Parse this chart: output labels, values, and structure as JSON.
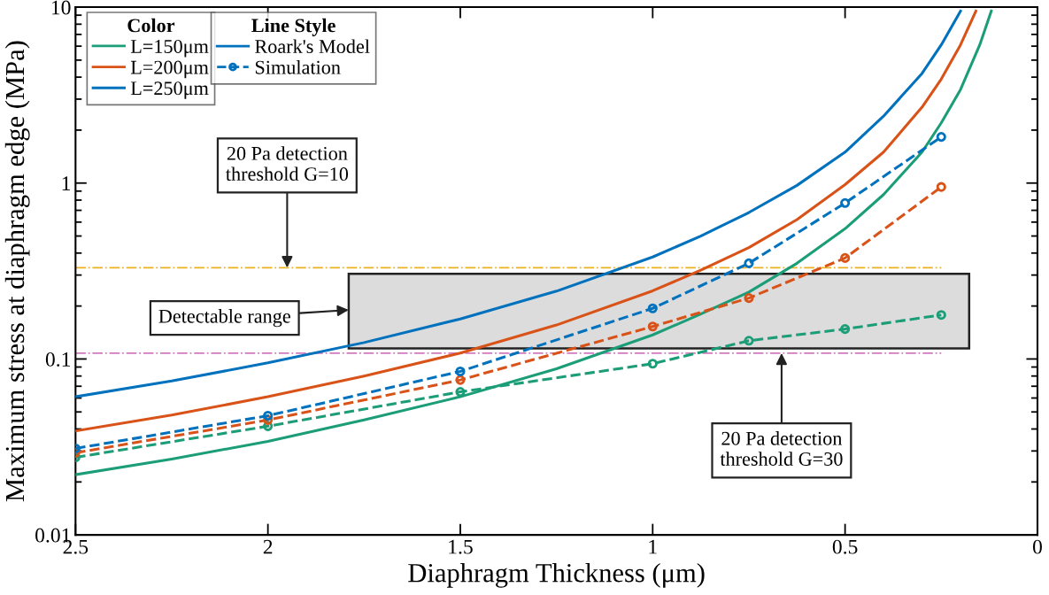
{
  "chart_data": {
    "type": "line",
    "xlabel": "Diaphragm Thickness (μm)",
    "ylabel": "Maximum stress at diaphragm edge (MPa)",
    "legend_title": "Color",
    "xlim": [
      2.5,
      0
    ],
    "xticks": [
      2.5,
      2,
      1.5,
      1,
      0.5,
      0
    ],
    "ylim": [
      0.01,
      10
    ],
    "yticks": [
      0.01,
      0.1,
      1,
      10
    ],
    "log": "y",
    "grid": false,
    "legend": "top left",
    "series": [
      {
        "name": "L=150μm",
        "color": "#1b9e77",
        "line_style": "solid",
        "marker": "none",
        "x": [
          2.5,
          2.25,
          2,
          1.75,
          1.5,
          1.25,
          1,
          0.875,
          0.75,
          0.625,
          0.5,
          0.4,
          0.3,
          0.25,
          0.2,
          0.15,
          0.12
        ],
        "values": [
          0.022,
          0.027,
          0.034,
          0.045,
          0.061,
          0.088,
          0.137,
          0.18,
          0.24,
          0.35,
          0.55,
          0.86,
          1.5,
          2.2,
          3.4,
          6.1,
          9.5
        ]
      },
      {
        "name": "L=200μm",
        "color": "#d95319",
        "line_style": "solid",
        "marker": "none",
        "x": [
          2.5,
          2.25,
          2,
          1.75,
          1.5,
          1.25,
          1,
          0.875,
          0.75,
          0.625,
          0.5,
          0.4,
          0.3,
          0.25,
          0.2,
          0.16
        ],
        "values": [
          0.039,
          0.048,
          0.061,
          0.08,
          0.108,
          0.156,
          0.244,
          0.32,
          0.43,
          0.62,
          0.98,
          1.5,
          2.7,
          3.9,
          6.1,
          9.5
        ]
      },
      {
        "name": "L=250μm",
        "color": "#0072bd",
        "line_style": "solid",
        "marker": "none",
        "x": [
          2.5,
          2.25,
          2,
          1.75,
          1.5,
          1.25,
          1,
          0.875,
          0.75,
          0.625,
          0.5,
          0.4,
          0.3,
          0.25,
          0.2
        ],
        "values": [
          0.061,
          0.075,
          0.095,
          0.124,
          0.169,
          0.243,
          0.38,
          0.5,
          0.68,
          0.97,
          1.5,
          2.4,
          4.2,
          6.1,
          9.5
        ]
      },
      {
        "color": "#1b9e77",
        "line_style": "dashed",
        "marker": "circle",
        "x": [
          2.5,
          2,
          1.5,
          1,
          0.75,
          0.5,
          0.25
        ],
        "values": [
          0.0276,
          0.0415,
          0.065,
          0.094,
          0.127,
          0.148,
          0.178
        ]
      },
      {
        "color": "#d95319",
        "line_style": "dashed",
        "marker": "circle",
        "x": [
          2.5,
          2,
          1.5,
          1,
          0.75,
          0.5,
          0.25
        ],
        "values": [
          0.0293,
          0.045,
          0.076,
          0.153,
          0.222,
          0.375,
          0.95
        ]
      },
      {
        "color": "#0072bd",
        "line_style": "dashed",
        "marker": "circle",
        "x": [
          2.5,
          2,
          1.5,
          1,
          0.75,
          0.5,
          0.25
        ],
        "values": [
          0.031,
          0.0476,
          0.085,
          0.194,
          0.35,
          0.77,
          1.83
        ]
      }
    ],
    "ref_lines": [
      {
        "axis": "y",
        "value": 0.33,
        "color": "#edb120",
        "line_style": "dashdot"
      },
      {
        "axis": "y",
        "value": 0.108,
        "color": "#d17ac0",
        "line_style": "dashdot"
      }
    ],
    "bands": [
      {
        "axis": "y",
        "from": 0.115,
        "to": 0.305,
        "color": "#dcdcdc"
      }
    ],
    "annotations": [
      {
        "text": "20 Pa detection\nthreshold G=10",
        "x": 1.95,
        "y": 0.33
      },
      {
        "text": "Detectable range",
        "x": 1.79,
        "y": 0.19
      },
      {
        "text": "20 Pa detection\nthreshold G=30",
        "x": 0.665,
        "y": 0.108
      },
      "Line Style",
      "Roark's Model",
      "Simulation"
    ]
  }
}
